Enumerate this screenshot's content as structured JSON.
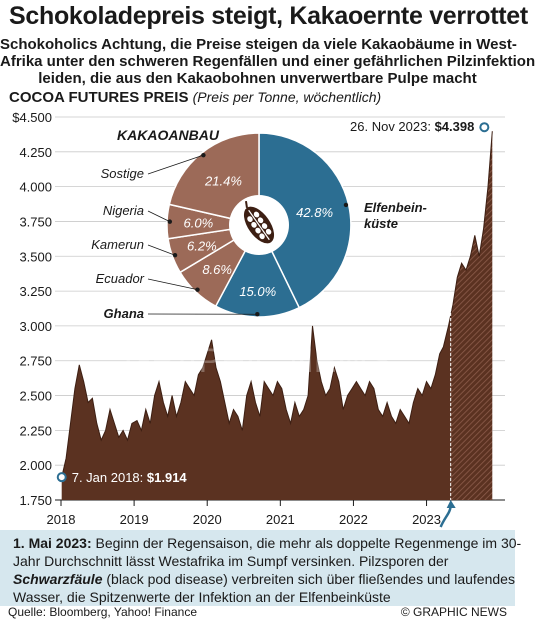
{
  "title": "Schokoladepreis steigt, Kakaoernte verrottet",
  "subtitle_lines": [
    "Schokoholics Achtung, die Preise steigen da viele Kakaobäume in West-",
    "Afrika unter den schweren Regenfällen und einer gefährlichen Pilzinfektion",
    "leiden, die aus den Kakaobohnen unverwertbare Pulpe macht"
  ],
  "chart_title": "COCOA FUTURES PREIS",
  "chart_title_note": "(Preis per Tonne, wöchentlich)",
  "chart_data": [
    {
      "type": "area",
      "ylim": [
        1750,
        4500
      ],
      "yticks": [
        "$4.500",
        "4.250",
        "4.000",
        "3.750",
        "3.500",
        "3.250",
        "3.000",
        "2.750",
        "2.500",
        "2.250",
        "2.000",
        "1.750"
      ],
      "ytick_values": [
        4500,
        4250,
        4000,
        3750,
        3500,
        3250,
        3000,
        2750,
        2500,
        2250,
        2000,
        1750
      ],
      "xticks": [
        "2018",
        "2019",
        "2020",
        "2021",
        "2022",
        "2023"
      ],
      "xtick_values": [
        2018,
        2019,
        2020,
        2021,
        2022,
        2023
      ],
      "x_range": [
        2018.0,
        2023.95
      ],
      "colors": {
        "area": "#5b3221",
        "hatch_start": "#8c5c4b",
        "marker": "#2c6e92"
      },
      "series": [
        {
          "x": [
            2018.01,
            2018.07,
            2018.13,
            2018.19,
            2018.25,
            2018.31,
            2018.37,
            2018.43,
            2018.49,
            2018.55,
            2018.61,
            2018.67,
            2018.73,
            2018.79,
            2018.85,
            2018.91,
            2018.97,
            2019.04,
            2019.1,
            2019.16,
            2019.22,
            2019.28,
            2019.34,
            2019.4,
            2019.46,
            2019.52,
            2019.58,
            2019.64,
            2019.7,
            2019.76,
            2019.82,
            2019.88,
            2019.94,
            2020.0,
            2020.06,
            2020.12,
            2020.18,
            2020.24,
            2020.3,
            2020.36,
            2020.42,
            2020.48,
            2020.54,
            2020.6,
            2020.66,
            2020.72,
            2020.78,
            2020.84,
            2020.9,
            2020.96,
            2021.02,
            2021.08,
            2021.14,
            2021.2,
            2021.26,
            2021.32,
            2021.38,
            2021.44,
            2021.5,
            2021.56,
            2021.62,
            2021.68,
            2021.74,
            2021.8,
            2021.86,
            2021.92,
            2021.98,
            2022.04,
            2022.1,
            2022.16,
            2022.22,
            2022.28,
            2022.34,
            2022.4,
            2022.46,
            2022.52,
            2022.58,
            2022.64,
            2022.7,
            2022.76,
            2022.82,
            2022.88,
            2022.94,
            2023.0,
            2023.06,
            2023.12,
            2023.18,
            2023.23,
            2023.3,
            2023.36,
            2023.42,
            2023.48,
            2023.54,
            2023.6,
            2023.66,
            2023.72,
            2023.78,
            2023.84,
            2023.9
          ],
          "y": [
            1914,
            2050,
            2300,
            2550,
            2720,
            2600,
            2450,
            2480,
            2300,
            2180,
            2250,
            2400,
            2300,
            2200,
            2250,
            2180,
            2300,
            2320,
            2250,
            2400,
            2300,
            2500,
            2600,
            2450,
            2350,
            2500,
            2350,
            2450,
            2600,
            2550,
            2500,
            2650,
            2700,
            2800,
            2900,
            2700,
            2600,
            2450,
            2300,
            2400,
            2350,
            2250,
            2500,
            2600,
            2450,
            2350,
            2600,
            2550,
            2500,
            2600,
            2550,
            2400,
            2300,
            2450,
            2350,
            2400,
            2500,
            3000,
            2750,
            2600,
            2500,
            2550,
            2700,
            2600,
            2400,
            2500,
            2550,
            2600,
            2550,
            2500,
            2600,
            2550,
            2400,
            2350,
            2450,
            2350,
            2300,
            2400,
            2350,
            2300,
            2450,
            2550,
            2500,
            2600,
            2550,
            2650,
            2800,
            2850,
            3000,
            3150,
            3350,
            3450,
            3400,
            3500,
            3650,
            3500,
            3700,
            4000,
            4398
          ]
        }
      ],
      "annotations": {
        "start_label": "7. Jan 2018: ",
        "start_value": "$1.914",
        "end_label": "26. Nov 2023: ",
        "end_value": "$4.398"
      }
    },
    {
      "type": "pie",
      "title": "KAKAOANBAU",
      "center_icon": "cocoa-pod-icon",
      "slices": [
        {
          "label": "Elfenbein-küste",
          "label_lines": [
            "Elfenbein-",
            "küste"
          ],
          "value": 42.8,
          "value_label": "42.8%",
          "color": "#2c6e92"
        },
        {
          "label": "Ghana",
          "value": 15.0,
          "value_label": "15.0%",
          "color": "#2c6e92"
        },
        {
          "label": "Ecuador",
          "value": 8.6,
          "value_label": "8.6%",
          "color": "#9c6a58"
        },
        {
          "label": "Kamerun",
          "value": 6.2,
          "value_label": "6.2%",
          "color": "#9c6a58"
        },
        {
          "label": "Nigeria",
          "value": 6.0,
          "value_label": "6.0%",
          "color": "#9c6a58"
        },
        {
          "label": "Sostige",
          "value": 21.4,
          "value_label": "21.4%",
          "color": "#9c6a58"
        }
      ]
    }
  ],
  "watermark": "GRAPHIC NEWS",
  "note": {
    "bold": "1. Mai 2023:",
    "text1": " Beginn der Regensaison, die mehr als doppelte Regenmenge im 30-Jahr Durchschnitt lässt Westafrika im Sumpf versinken. Pilzsporen der ",
    "italic": "Schwarzfäule",
    "text2": " (black pod disease) verbreiten sich über fließendes und laufendes Wasser, die Spitzenwerte der Infektion an der Elfenbeinküste"
  },
  "source": "Quelle: Bloomberg, Yahoo! Finance",
  "brand": "© GRAPHIC NEWS"
}
